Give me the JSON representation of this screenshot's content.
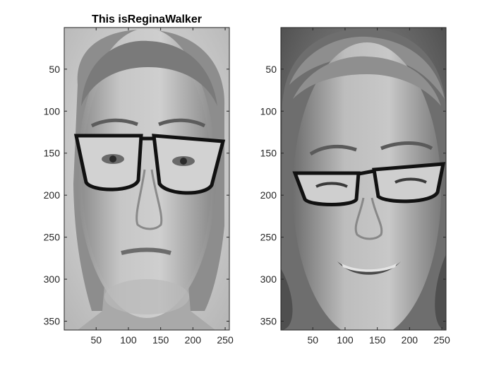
{
  "figure": {
    "background": "#ffffff",
    "axes_color": "#262626",
    "colormap": "gray"
  },
  "panels": [
    {
      "title": "This isReginaWalker",
      "image_description": "Grayscale photo of a woman with glasses, neutral expression, hair pulled back",
      "x_ticks": [
        "50",
        "100",
        "150",
        "200",
        "250"
      ],
      "y_ticks": [
        "50",
        "100",
        "150",
        "200",
        "250",
        "300",
        "350"
      ]
    },
    {
      "title": "",
      "image_description": "Grayscale photo of a woman with glasses, smiling and squinting",
      "x_ticks": [
        "50",
        "100",
        "150",
        "200",
        "250"
      ],
      "y_ticks": [
        "50",
        "100",
        "150",
        "200",
        "250",
        "300",
        "350"
      ]
    }
  ]
}
